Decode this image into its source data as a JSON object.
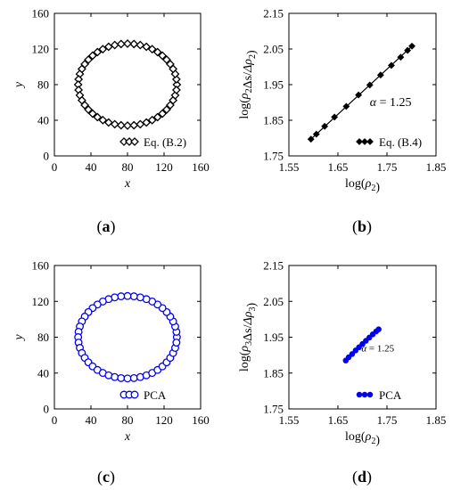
{
  "colors": {
    "black": "#000000",
    "blue": "#0000ee"
  },
  "chart_data": [
    {
      "type": "scatter",
      "panel_label": "a",
      "xlabel": "x",
      "ylabel": "y",
      "xlim": [
        0,
        160
      ],
      "ylim": [
        0,
        160
      ],
      "xticks": [
        0,
        40,
        80,
        120,
        160
      ],
      "yticks": [
        0,
        40,
        80,
        120,
        160
      ],
      "grid": false,
      "series": [
        {
          "name": "Eq. (B.2)",
          "marker": "diamond-open",
          "color": "#000000",
          "ellipse": {
            "cx": 80,
            "cy": 80,
            "rx": 54,
            "ry": 46,
            "n": 48
          }
        }
      ],
      "legend": "bottom-right"
    },
    {
      "type": "scatter",
      "panel_label": "b",
      "xlabel": "log(ρ2)",
      "ylabel": "log(ρ2Δs/Δρ2)",
      "xlim": [
        1.55,
        1.85
      ],
      "ylim": [
        1.75,
        2.15
      ],
      "xticks": [
        1.55,
        1.65,
        1.75,
        1.85
      ],
      "yticks": [
        1.75,
        1.85,
        1.95,
        2.05,
        2.15
      ],
      "grid": false,
      "annotation": "α = 1.25",
      "series": [
        {
          "name": "Eq. (B.4)",
          "marker": "diamond-filled",
          "color": "#000000",
          "x": [
            1.595,
            1.606,
            1.623,
            1.643,
            1.667,
            1.692,
            1.715,
            1.737,
            1.759,
            1.778,
            1.792,
            1.801
          ],
          "y": [
            1.797,
            1.811,
            1.833,
            1.859,
            1.889,
            1.921,
            1.949,
            1.977,
            2.004,
            2.027,
            2.046,
            2.058
          ]
        }
      ],
      "fit_line": {
        "x": [
          1.595,
          1.801
        ],
        "y": [
          1.797,
          2.058
        ]
      },
      "legend": "bottom-right"
    },
    {
      "type": "scatter",
      "panel_label": "c",
      "xlabel": "x",
      "ylabel": "y",
      "xlim": [
        0,
        160
      ],
      "ylim": [
        0,
        160
      ],
      "xticks": [
        0,
        40,
        80,
        120,
        160
      ],
      "yticks": [
        0,
        40,
        80,
        120,
        160
      ],
      "grid": false,
      "series": [
        {
          "name": "PCA",
          "marker": "circle-open",
          "color": "#0000ee",
          "ellipse": {
            "cx": 80,
            "cy": 80,
            "rx": 54,
            "ry": 46,
            "n": 48
          }
        }
      ],
      "legend": "bottom-right"
    },
    {
      "type": "scatter",
      "panel_label": "d",
      "xlabel": "log(ρ2)",
      "ylabel": "log(ρ3Δs/Δρ3)",
      "xlim": [
        1.55,
        1.85
      ],
      "ylim": [
        1.75,
        2.15
      ],
      "xticks": [
        1.55,
        1.65,
        1.75,
        1.85
      ],
      "yticks": [
        1.75,
        1.85,
        1.95,
        2.05,
        2.15
      ],
      "grid": false,
      "annotation": "α = 1.25",
      "series": [
        {
          "name": "PCA",
          "marker": "circle-filled",
          "color": "#0000ee",
          "x": [
            1.666,
            1.672,
            1.679,
            1.686,
            1.693,
            1.7,
            1.707,
            1.714,
            1.721,
            1.728,
            1.733
          ],
          "y": [
            1.885,
            1.894,
            1.903,
            1.913,
            1.922,
            1.931,
            1.94,
            1.949,
            1.958,
            1.966,
            1.972
          ]
        }
      ],
      "legend": "bottom-right"
    }
  ]
}
